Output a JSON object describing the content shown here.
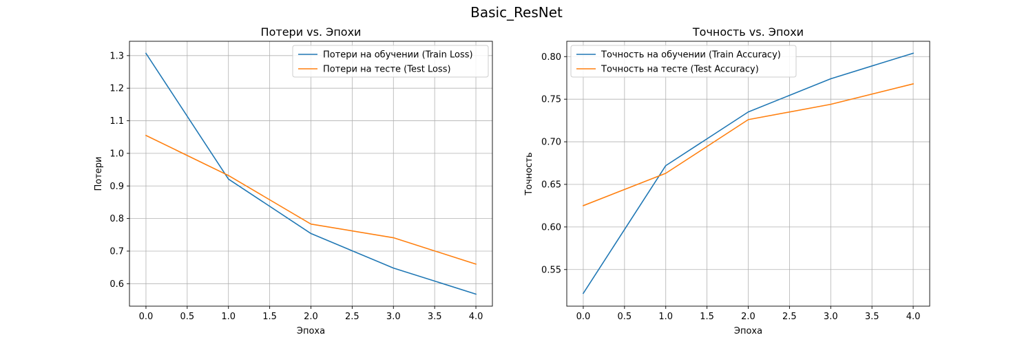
{
  "figure": {
    "suptitle": "Basic_ResNet"
  },
  "chart_data": [
    {
      "type": "line",
      "title": "Потери vs. Эпохи",
      "xlabel": "Эпоха",
      "ylabel": "Потери",
      "x": [
        0,
        1,
        2,
        3,
        4
      ],
      "xlim": [
        -0.2,
        4.2
      ],
      "ylim": [
        0.531,
        1.344
      ],
      "xticks": [
        0.0,
        0.5,
        1.0,
        1.5,
        2.0,
        2.5,
        3.0,
        3.5,
        4.0
      ],
      "yticks": [
        0.6,
        0.7,
        0.8,
        0.9,
        1.0,
        1.1,
        1.2,
        1.3
      ],
      "xtick_decimals": 1,
      "ytick_decimals": 1,
      "grid": true,
      "legend_position": "top-right",
      "series": [
        {
          "name": "Потери на обучении (Train Loss)",
          "color": "#1f77b4",
          "values": [
            1.307,
            0.921,
            0.754,
            0.648,
            0.568
          ]
        },
        {
          "name": "Потери на тесте (Test Loss)",
          "color": "#ff7f0e",
          "values": [
            1.055,
            0.932,
            0.783,
            0.741,
            0.66
          ]
        }
      ]
    },
    {
      "type": "line",
      "title": "Точность vs. Эпохи",
      "xlabel": "Эпоха",
      "ylabel": "Точность",
      "x": [
        0,
        1,
        2,
        3,
        4
      ],
      "xlim": [
        -0.2,
        4.2
      ],
      "ylim": [
        0.507,
        0.818
      ],
      "xticks": [
        0.0,
        0.5,
        1.0,
        1.5,
        2.0,
        2.5,
        3.0,
        3.5,
        4.0
      ],
      "yticks": [
        0.55,
        0.6,
        0.65,
        0.7,
        0.75,
        0.8
      ],
      "xtick_decimals": 1,
      "ytick_decimals": 2,
      "grid": true,
      "legend_position": "top-left",
      "series": [
        {
          "name": "Точность на обучении (Train Accuracy)",
          "color": "#1f77b4",
          "values": [
            0.522,
            0.672,
            0.735,
            0.774,
            0.804
          ]
        },
        {
          "name": "Точность на тесте (Test Accuracy)",
          "color": "#ff7f0e",
          "values": [
            0.625,
            0.663,
            0.726,
            0.744,
            0.768
          ]
        }
      ]
    }
  ]
}
